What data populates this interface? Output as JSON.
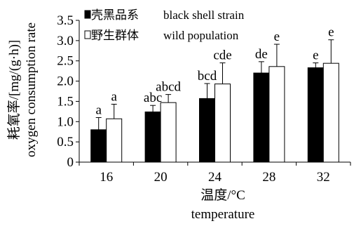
{
  "chart_data": {
    "type": "bar",
    "categories": [
      "16",
      "20",
      "24",
      "28",
      "32"
    ],
    "series": [
      {
        "name": "壳黑品系 black shell strain",
        "name_cn": "壳黑品系",
        "name_en": "black shell strain",
        "color": "#000000",
        "values": [
          0.8,
          1.24,
          1.57,
          2.2,
          2.33
        ],
        "errors": [
          0.3,
          0.16,
          0.37,
          0.28,
          0.12
        ],
        "labels": [
          "a",
          "abc",
          "bcd",
          "de",
          "e"
        ]
      },
      {
        "name": "野生群体 wild population",
        "name_cn": "野生群体",
        "name_en": "wild population",
        "color": "#ffffff",
        "values": [
          1.07,
          1.47,
          1.93,
          2.36,
          2.44
        ],
        "errors": [
          0.36,
          0.2,
          0.52,
          0.55,
          0.58
        ],
        "labels": [
          "a",
          "abcd",
          "cde",
          "e",
          "e"
        ]
      }
    ],
    "xlabel_cn": "温度/°C",
    "xlabel_en": "temperature",
    "ylabel_cn": "耗氧率/[mg/(g·h)]",
    "ylabel_en": "oxygen consumption rate",
    "ylim": [
      0,
      3.5
    ],
    "yticks": [
      0,
      0.5,
      1.0,
      1.5,
      2.0,
      2.5,
      3.0,
      3.5
    ],
    "ytick_labels": [
      "0",
      "0.5",
      "1.0",
      "1.5",
      "2.0",
      "2.5",
      "3.0",
      "3.5"
    ],
    "grid": false,
    "legend_position": "top-left"
  }
}
